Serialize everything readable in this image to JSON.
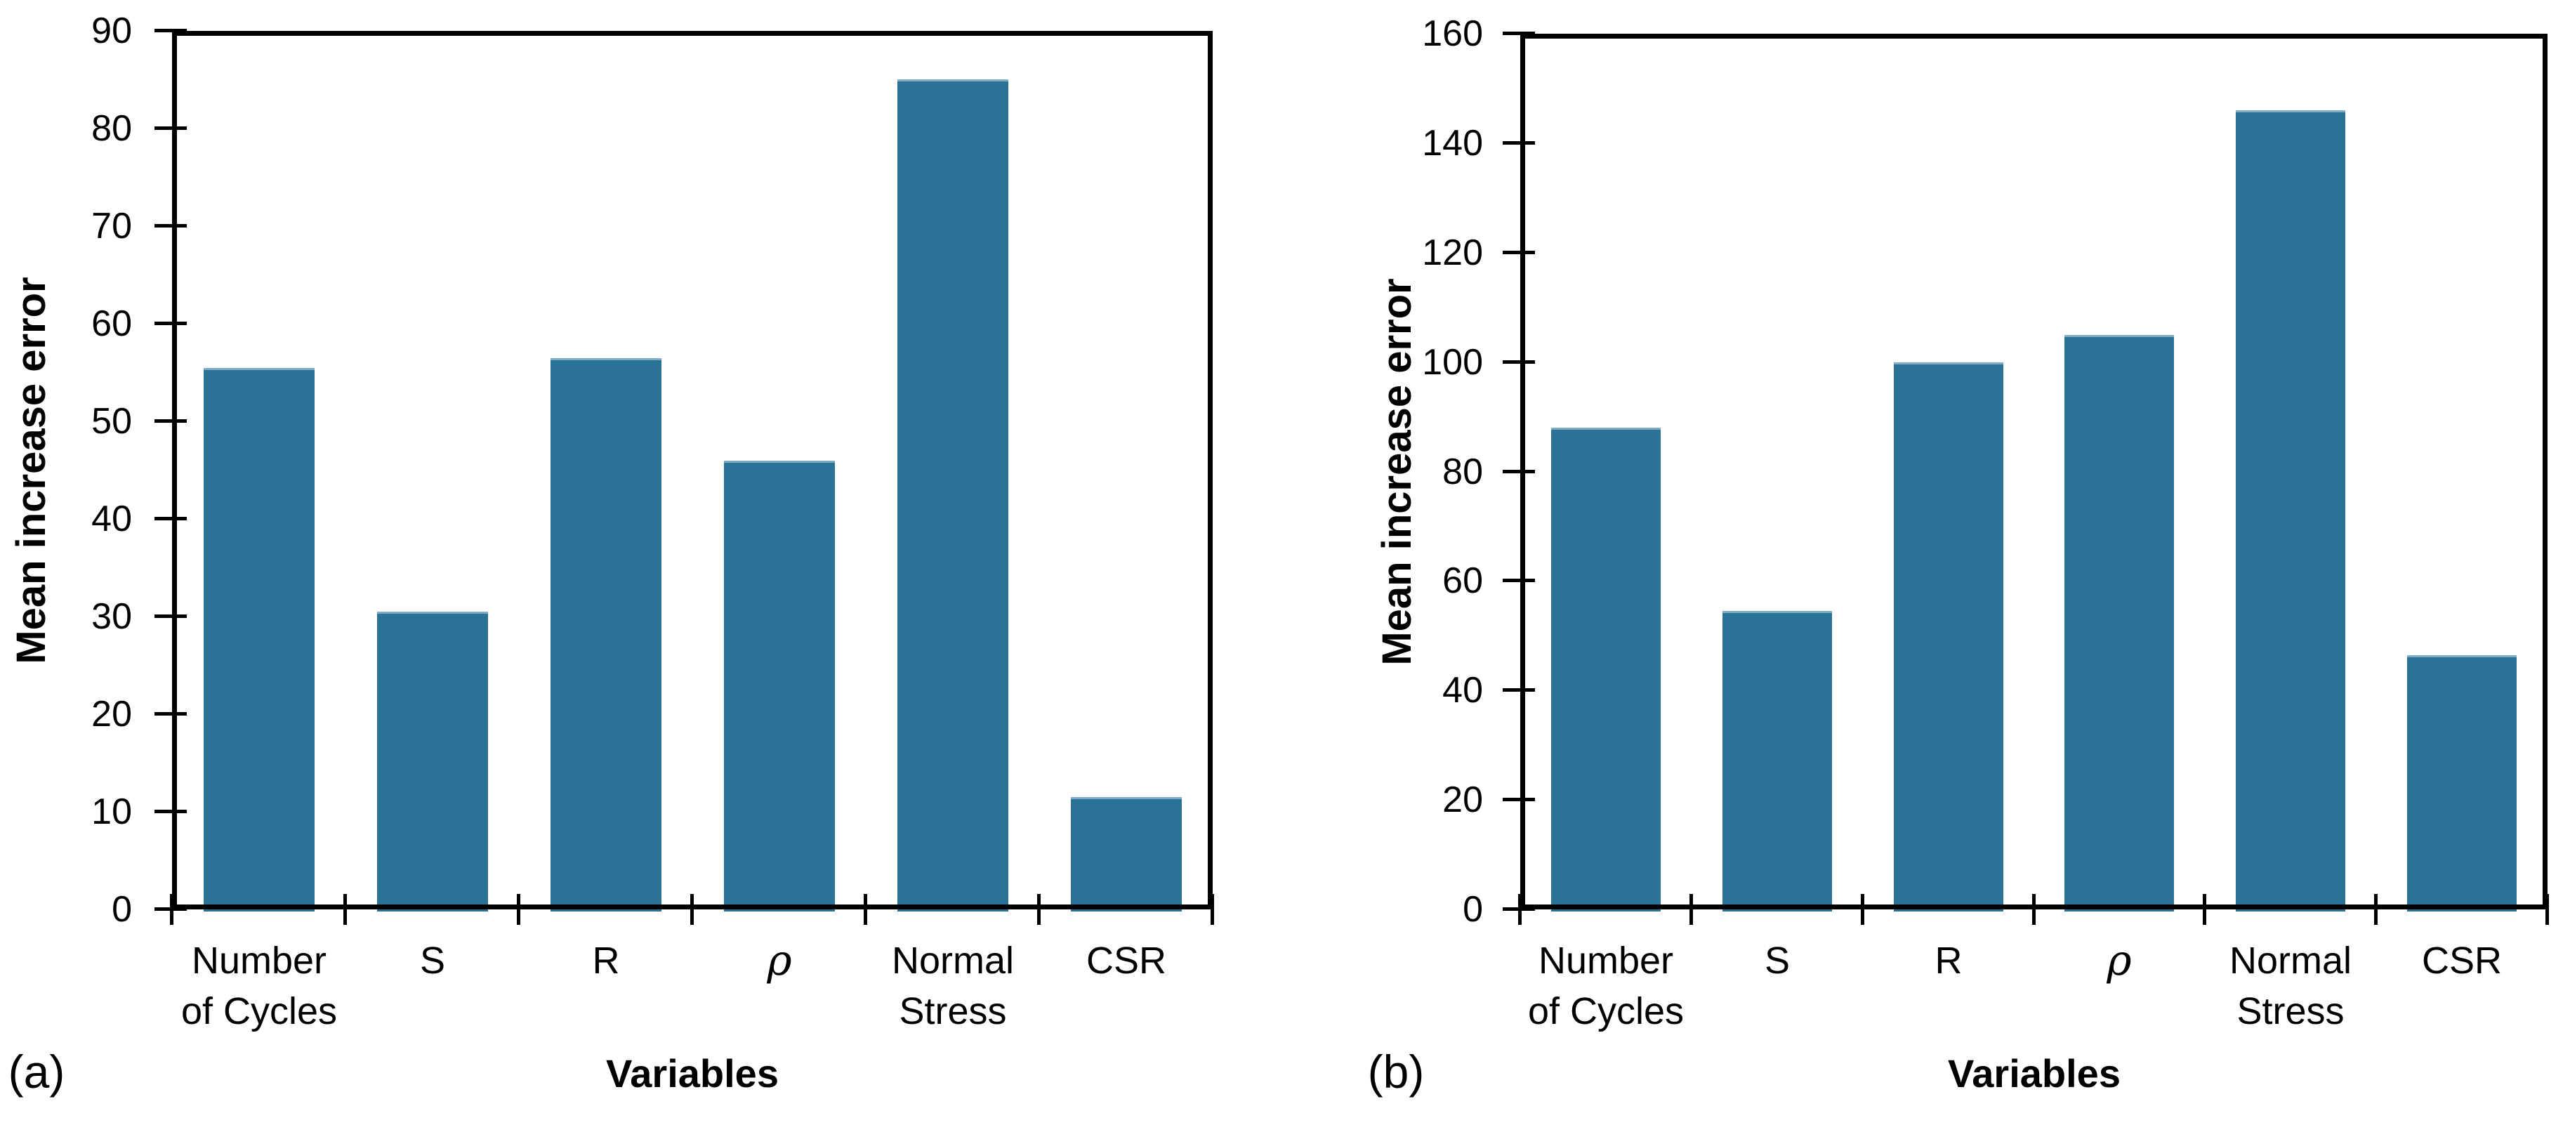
{
  "figure": {
    "background_color": "#ffffff",
    "axis_color": "#000000",
    "bar_color": "#2b7396"
  },
  "chart_data": [
    {
      "type": "bar",
      "panel_label": "(a)",
      "title": "",
      "xlabel": "Variables",
      "ylabel": "Mean increase error",
      "categories": [
        "Number\nof Cycles",
        "S",
        "R",
        "ρ",
        "Normal\nStress",
        "CSR"
      ],
      "values": [
        55.5,
        30.5,
        56.5,
        46,
        85,
        11.5
      ],
      "ylim": [
        0,
        90
      ],
      "ytick_step": 10,
      "yticks": [
        0,
        10,
        20,
        30,
        40,
        50,
        60,
        70,
        80,
        90
      ],
      "grid": false,
      "legend": null,
      "bar_color": "#2b7396"
    },
    {
      "type": "bar",
      "panel_label": "(b)",
      "title": "",
      "xlabel": "Variables",
      "ylabel": "Mean increase error",
      "categories": [
        "Number\nof Cycles",
        "S",
        "R",
        "ρ",
        "Normal\nStress",
        "CSR"
      ],
      "values": [
        88,
        54.5,
        100,
        105,
        146,
        46.5
      ],
      "ylim": [
        0,
        160
      ],
      "ytick_step": 20,
      "yticks": [
        0,
        20,
        40,
        60,
        80,
        100,
        120,
        140,
        160
      ],
      "grid": false,
      "legend": null,
      "bar_color": "#2b7396"
    }
  ]
}
